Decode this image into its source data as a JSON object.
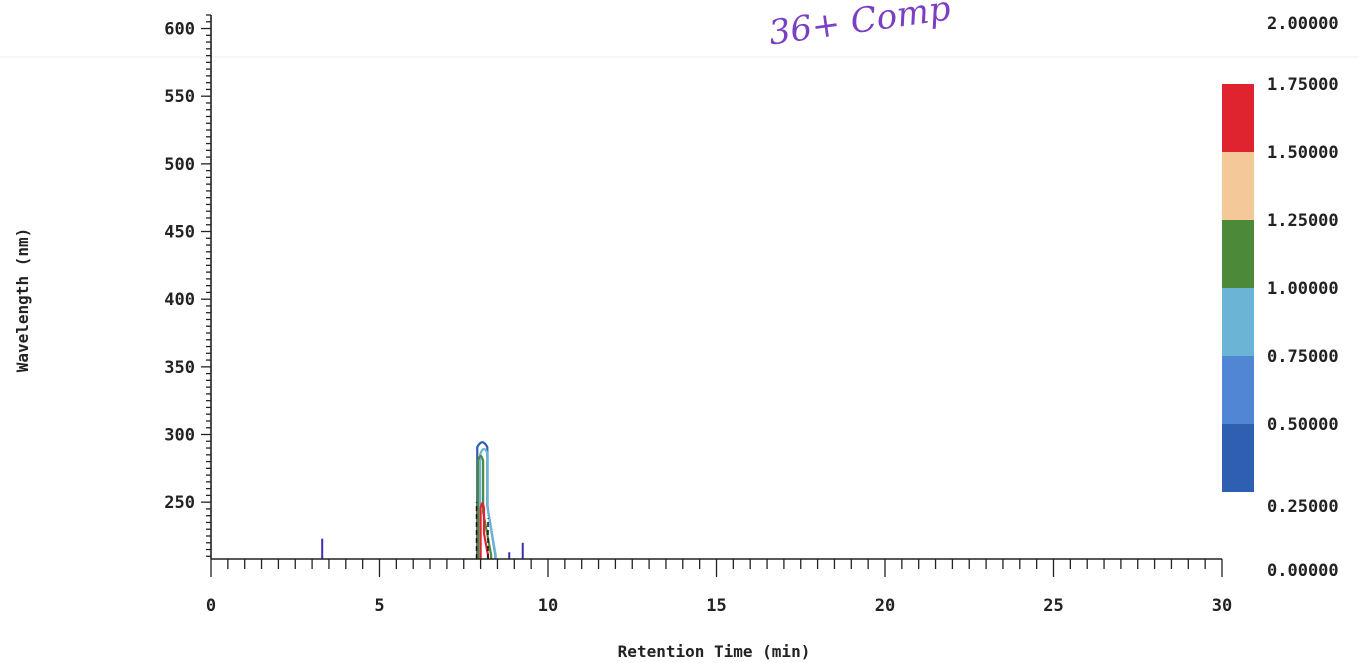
{
  "chart_data": {
    "type": "heatmap",
    "subtype": "contour",
    "xlabel": "Retention Time (min)",
    "ylabel": "Wavelength (nm)",
    "xlim": [
      0,
      30
    ],
    "ylim": [
      208,
      610
    ],
    "x_ticks": [
      "0",
      "5",
      "10",
      "15",
      "20",
      "25",
      "30"
    ],
    "y_ticks": [
      "250",
      "300",
      "350",
      "400",
      "450",
      "500",
      "550",
      "600"
    ],
    "x_tick_values": [
      0,
      5,
      10,
      15,
      20,
      25,
      30
    ],
    "y_tick_values": [
      250,
      300,
      350,
      400,
      450,
      500,
      550,
      600
    ],
    "grid": false,
    "colorbar": {
      "placement": "right",
      "labels": [
        "2.00000",
        "1.75000",
        "1.50000",
        "1.25000",
        "1.00000",
        "0.75000",
        "0.50000",
        "0.25000",
        "0.00000"
      ],
      "bands": [
        {
          "from": 1.5,
          "to": 1.75,
          "color": "#e0242f"
        },
        {
          "from": 1.25,
          "to": 1.5,
          "color": "#f5c89a"
        },
        {
          "from": 1.0,
          "to": 1.25,
          "color": "#4c8a3a"
        },
        {
          "from": 0.75,
          "to": 1.0,
          "color": "#6cb4d6"
        },
        {
          "from": 0.5,
          "to": 0.75,
          "color": "#5086d4"
        },
        {
          "from": 0.25,
          "to": 0.5,
          "color": "#2f5fb0"
        }
      ]
    },
    "contours": [
      {
        "x_center": 8.05,
        "width": 0.3,
        "y_top": 295,
        "level": 0.25,
        "color": "#2f5fb0"
      },
      {
        "x_center": 8.1,
        "width": 0.22,
        "y_top": 290,
        "level": 0.75,
        "color": "#6cb4d6"
      },
      {
        "x_center": 8.0,
        "width": 0.15,
        "y_top": 285,
        "level": 1.0,
        "color": "#4c8a3a"
      },
      {
        "x_center": 8.05,
        "width": 0.1,
        "y_top": 250,
        "level": 1.5,
        "color": "#e0242f"
      }
    ],
    "spikes": [
      {
        "x": 3.3,
        "y_top": 223
      },
      {
        "x": 8.85,
        "y_top": 213
      },
      {
        "x": 9.25,
        "y_top": 220
      }
    ],
    "annotation": "36+ Comp"
  }
}
